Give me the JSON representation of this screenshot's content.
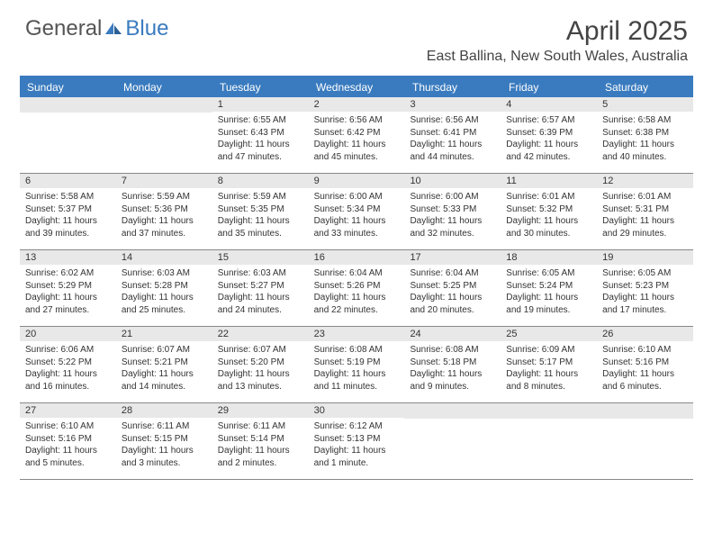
{
  "brand": {
    "general": "General",
    "blue": "Blue"
  },
  "title": "April 2025",
  "location": "East Ballina, New South Wales, Australia",
  "colors": {
    "accent": "#3a7bbf",
    "header_num_bg": "#e8e8e8",
    "row_border": "#888888",
    "text": "#333333",
    "logo_gray": "#555555"
  },
  "weekdays": [
    "Sunday",
    "Monday",
    "Tuesday",
    "Wednesday",
    "Thursday",
    "Friday",
    "Saturday"
  ],
  "weeks": [
    [
      {
        "blank": true
      },
      {
        "blank": true
      },
      {
        "day": "1",
        "sunrise": "Sunrise: 6:55 AM",
        "sunset": "Sunset: 6:43 PM",
        "daylight": "Daylight: 11 hours and 47 minutes."
      },
      {
        "day": "2",
        "sunrise": "Sunrise: 6:56 AM",
        "sunset": "Sunset: 6:42 PM",
        "daylight": "Daylight: 11 hours and 45 minutes."
      },
      {
        "day": "3",
        "sunrise": "Sunrise: 6:56 AM",
        "sunset": "Sunset: 6:41 PM",
        "daylight": "Daylight: 11 hours and 44 minutes."
      },
      {
        "day": "4",
        "sunrise": "Sunrise: 6:57 AM",
        "sunset": "Sunset: 6:39 PM",
        "daylight": "Daylight: 11 hours and 42 minutes."
      },
      {
        "day": "5",
        "sunrise": "Sunrise: 6:58 AM",
        "sunset": "Sunset: 6:38 PM",
        "daylight": "Daylight: 11 hours and 40 minutes."
      }
    ],
    [
      {
        "day": "6",
        "sunrise": "Sunrise: 5:58 AM",
        "sunset": "Sunset: 5:37 PM",
        "daylight": "Daylight: 11 hours and 39 minutes."
      },
      {
        "day": "7",
        "sunrise": "Sunrise: 5:59 AM",
        "sunset": "Sunset: 5:36 PM",
        "daylight": "Daylight: 11 hours and 37 minutes."
      },
      {
        "day": "8",
        "sunrise": "Sunrise: 5:59 AM",
        "sunset": "Sunset: 5:35 PM",
        "daylight": "Daylight: 11 hours and 35 minutes."
      },
      {
        "day": "9",
        "sunrise": "Sunrise: 6:00 AM",
        "sunset": "Sunset: 5:34 PM",
        "daylight": "Daylight: 11 hours and 33 minutes."
      },
      {
        "day": "10",
        "sunrise": "Sunrise: 6:00 AM",
        "sunset": "Sunset: 5:33 PM",
        "daylight": "Daylight: 11 hours and 32 minutes."
      },
      {
        "day": "11",
        "sunrise": "Sunrise: 6:01 AM",
        "sunset": "Sunset: 5:32 PM",
        "daylight": "Daylight: 11 hours and 30 minutes."
      },
      {
        "day": "12",
        "sunrise": "Sunrise: 6:01 AM",
        "sunset": "Sunset: 5:31 PM",
        "daylight": "Daylight: 11 hours and 29 minutes."
      }
    ],
    [
      {
        "day": "13",
        "sunrise": "Sunrise: 6:02 AM",
        "sunset": "Sunset: 5:29 PM",
        "daylight": "Daylight: 11 hours and 27 minutes."
      },
      {
        "day": "14",
        "sunrise": "Sunrise: 6:03 AM",
        "sunset": "Sunset: 5:28 PM",
        "daylight": "Daylight: 11 hours and 25 minutes."
      },
      {
        "day": "15",
        "sunrise": "Sunrise: 6:03 AM",
        "sunset": "Sunset: 5:27 PM",
        "daylight": "Daylight: 11 hours and 24 minutes."
      },
      {
        "day": "16",
        "sunrise": "Sunrise: 6:04 AM",
        "sunset": "Sunset: 5:26 PM",
        "daylight": "Daylight: 11 hours and 22 minutes."
      },
      {
        "day": "17",
        "sunrise": "Sunrise: 6:04 AM",
        "sunset": "Sunset: 5:25 PM",
        "daylight": "Daylight: 11 hours and 20 minutes."
      },
      {
        "day": "18",
        "sunrise": "Sunrise: 6:05 AM",
        "sunset": "Sunset: 5:24 PM",
        "daylight": "Daylight: 11 hours and 19 minutes."
      },
      {
        "day": "19",
        "sunrise": "Sunrise: 6:05 AM",
        "sunset": "Sunset: 5:23 PM",
        "daylight": "Daylight: 11 hours and 17 minutes."
      }
    ],
    [
      {
        "day": "20",
        "sunrise": "Sunrise: 6:06 AM",
        "sunset": "Sunset: 5:22 PM",
        "daylight": "Daylight: 11 hours and 16 minutes."
      },
      {
        "day": "21",
        "sunrise": "Sunrise: 6:07 AM",
        "sunset": "Sunset: 5:21 PM",
        "daylight": "Daylight: 11 hours and 14 minutes."
      },
      {
        "day": "22",
        "sunrise": "Sunrise: 6:07 AM",
        "sunset": "Sunset: 5:20 PM",
        "daylight": "Daylight: 11 hours and 13 minutes."
      },
      {
        "day": "23",
        "sunrise": "Sunrise: 6:08 AM",
        "sunset": "Sunset: 5:19 PM",
        "daylight": "Daylight: 11 hours and 11 minutes."
      },
      {
        "day": "24",
        "sunrise": "Sunrise: 6:08 AM",
        "sunset": "Sunset: 5:18 PM",
        "daylight": "Daylight: 11 hours and 9 minutes."
      },
      {
        "day": "25",
        "sunrise": "Sunrise: 6:09 AM",
        "sunset": "Sunset: 5:17 PM",
        "daylight": "Daylight: 11 hours and 8 minutes."
      },
      {
        "day": "26",
        "sunrise": "Sunrise: 6:10 AM",
        "sunset": "Sunset: 5:16 PM",
        "daylight": "Daylight: 11 hours and 6 minutes."
      }
    ],
    [
      {
        "day": "27",
        "sunrise": "Sunrise: 6:10 AM",
        "sunset": "Sunset: 5:16 PM",
        "daylight": "Daylight: 11 hours and 5 minutes."
      },
      {
        "day": "28",
        "sunrise": "Sunrise: 6:11 AM",
        "sunset": "Sunset: 5:15 PM",
        "daylight": "Daylight: 11 hours and 3 minutes."
      },
      {
        "day": "29",
        "sunrise": "Sunrise: 6:11 AM",
        "sunset": "Sunset: 5:14 PM",
        "daylight": "Daylight: 11 hours and 2 minutes."
      },
      {
        "day": "30",
        "sunrise": "Sunrise: 6:12 AM",
        "sunset": "Sunset: 5:13 PM",
        "daylight": "Daylight: 11 hours and 1 minute."
      },
      {
        "blank": true
      },
      {
        "blank": true
      },
      {
        "blank": true
      }
    ]
  ]
}
